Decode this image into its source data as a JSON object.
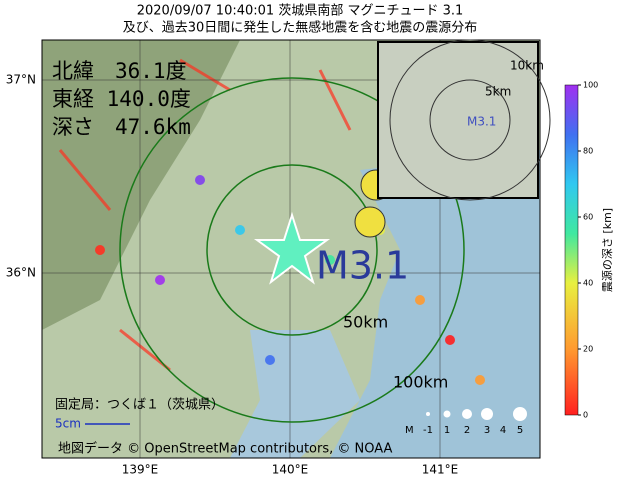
{
  "header": {
    "line1": "2020/09/07 10:40:01 茨城県南部 マグニチュード 3.1",
    "line2": "及び、過去30日間に発生した無感地震を含む地震の震源分布"
  },
  "info": {
    "latitude": "北緯　36.1度",
    "longitude": "東経 140.0度",
    "depth": "深さ　47.6km"
  },
  "map": {
    "magnitude": "M3.1",
    "ring_50": "50km",
    "ring_100": "100km",
    "lat_labels": [
      "37°N",
      "36°N"
    ],
    "lon_labels": [
      "139°E",
      "140°E",
      "141°E"
    ],
    "station": "固定局：つくば１（茨城県）",
    "scale": "5cm",
    "attribution": "地図データ © OpenStreetMap contributors, © NOAA",
    "mag_legend": {
      "title": "M",
      "labels": [
        "-1",
        "1",
        "2",
        "3",
        "4",
        "5"
      ]
    }
  },
  "inset": {
    "ring_10": "10km",
    "ring_5": "5km",
    "magnitude": "M3.1"
  },
  "colorbar": {
    "label": "震源の深さ [km]",
    "ticks": [
      0,
      20,
      40,
      60,
      80,
      100
    ]
  }
}
